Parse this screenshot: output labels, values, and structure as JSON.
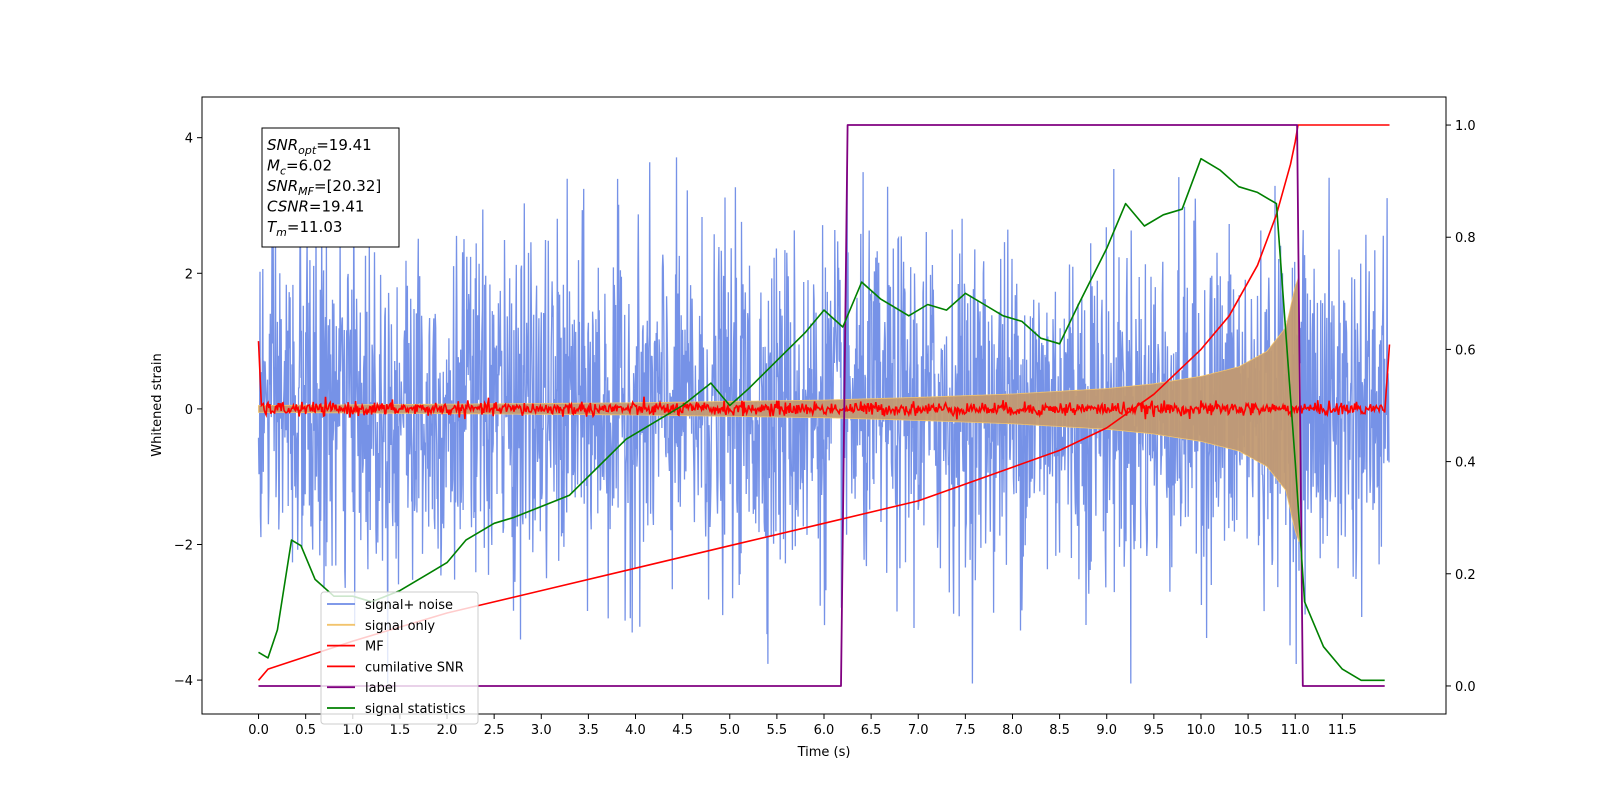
{
  "chart_data": {
    "type": "line",
    "title": "",
    "xlabel": "Time (s)",
    "ylabel": "Whitened strain",
    "xlim": [
      -0.6,
      12.6
    ],
    "ylim": [
      -4.5,
      4.6
    ],
    "y2lim": [
      -0.05,
      1.05
    ],
    "x_ticks": [
      0.0,
      0.5,
      1.0,
      1.5,
      2.0,
      2.5,
      3.0,
      3.5,
      4.0,
      4.5,
      5.0,
      5.5,
      6.0,
      6.5,
      7.0,
      7.5,
      8.0,
      8.5,
      9.0,
      9.5,
      10.0,
      10.5,
      11.0,
      11.5
    ],
    "x_tick_labels": [
      "0.0",
      "0.5",
      "1.0",
      "1.5",
      "2.0",
      "2.5",
      "3.0",
      "3.5",
      "4.0",
      "4.5",
      "5.0",
      "5.5",
      "6.0",
      "6.5",
      "7.0",
      "7.5",
      "8.0",
      "8.5",
      "9.0",
      "9.5",
      "10.0",
      "10.5",
      "11.0",
      "11.5"
    ],
    "y_ticks": [
      -4,
      -2,
      0,
      2,
      4
    ],
    "y_tick_labels": [
      "−4",
      "−2",
      "0",
      "2",
      "4"
    ],
    "y2_ticks": [
      0.0,
      0.2,
      0.4,
      0.6,
      0.8,
      1.0
    ],
    "y2_tick_labels": [
      "0.0",
      "0.2",
      "0.4",
      "0.6",
      "0.8",
      "1.0"
    ],
    "legend_position": "lower-left",
    "series": [
      {
        "name": "signal+ noise",
        "axis": "left",
        "color": "#6f8ce6",
        "description_range": [
          -4.1,
          4.2
        ]
      },
      {
        "name": "signal only",
        "axis": "left",
        "color": "#f2c46d",
        "envelope": {
          "x": [
            0,
            2,
            4,
            6,
            7,
            8,
            9,
            9.5,
            10,
            10.4,
            10.7,
            10.9,
            11.0,
            11.05
          ],
          "amp": [
            0.05,
            0.07,
            0.09,
            0.13,
            0.17,
            0.22,
            0.3,
            0.37,
            0.48,
            0.62,
            0.85,
            1.2,
            1.8,
            2.0
          ]
        }
      },
      {
        "name": "MF",
        "axis": "left",
        "color": "#ff0000",
        "level": 0.0,
        "spread": 0.1,
        "edge_values": [
          1.0,
          0.95
        ]
      },
      {
        "name": "cumilative SNR",
        "axis": "right",
        "color": "#ff0000",
        "x": [
          0,
          0.1,
          1,
          2,
          3,
          4,
          5,
          6,
          7,
          8,
          8.5,
          9,
          9.5,
          10,
          10.3,
          10.6,
          10.8,
          10.95,
          11.0,
          11.03,
          12.0
        ],
        "y": [
          0.01,
          0.03,
          0.08,
          0.13,
          0.17,
          0.21,
          0.25,
          0.29,
          0.33,
          0.39,
          0.42,
          0.46,
          0.52,
          0.6,
          0.66,
          0.75,
          0.84,
          0.93,
          0.97,
          1.0,
          1.0
        ]
      },
      {
        "name": "label",
        "axis": "right",
        "color": "#800080",
        "x": [
          0,
          6.18,
          6.25,
          11.02,
          11.08,
          11.95
        ],
        "y": [
          0,
          0,
          1,
          1,
          0,
          0
        ]
      },
      {
        "name": "signal statistics",
        "axis": "right",
        "color": "#008000",
        "x": [
          0,
          0.1,
          0.2,
          0.35,
          0.45,
          0.6,
          0.8,
          1.0,
          1.2,
          1.5,
          1.8,
          2.0,
          2.2,
          2.5,
          2.7,
          3.0,
          3.3,
          3.6,
          3.9,
          4.2,
          4.5,
          4.8,
          5.0,
          5.2,
          5.5,
          5.8,
          6.0,
          6.2,
          6.4,
          6.6,
          6.9,
          7.1,
          7.3,
          7.5,
          7.7,
          7.9,
          8.1,
          8.3,
          8.5,
          8.7,
          9.0,
          9.2,
          9.4,
          9.6,
          9.8,
          10.0,
          10.2,
          10.4,
          10.6,
          10.8,
          11.0,
          11.1,
          11.3,
          11.5,
          11.7,
          11.95
        ],
        "y": [
          0.06,
          0.05,
          0.1,
          0.26,
          0.25,
          0.19,
          0.16,
          0.16,
          0.15,
          0.17,
          0.2,
          0.22,
          0.26,
          0.29,
          0.3,
          0.32,
          0.34,
          0.39,
          0.44,
          0.47,
          0.5,
          0.54,
          0.5,
          0.53,
          0.58,
          0.63,
          0.67,
          0.64,
          0.72,
          0.69,
          0.66,
          0.68,
          0.67,
          0.7,
          0.68,
          0.66,
          0.65,
          0.62,
          0.61,
          0.68,
          0.78,
          0.86,
          0.82,
          0.84,
          0.85,
          0.94,
          0.92,
          0.89,
          0.88,
          0.86,
          0.4,
          0.15,
          0.07,
          0.03,
          0.01,
          0.01
        ]
      }
    ],
    "annotation": {
      "lines": [
        {
          "base": "SNR",
          "sub": "opt",
          "value": "=19.41"
        },
        {
          "base": "M",
          "sub": "c",
          "value": "=6.02"
        },
        {
          "base": "SNR",
          "sub": "MF",
          "value": "=[20.32]"
        },
        {
          "base": "CSNR",
          "sub": "",
          "value": "=19.41"
        },
        {
          "base": "T",
          "sub": "m",
          "value": "=11.03"
        }
      ]
    }
  }
}
